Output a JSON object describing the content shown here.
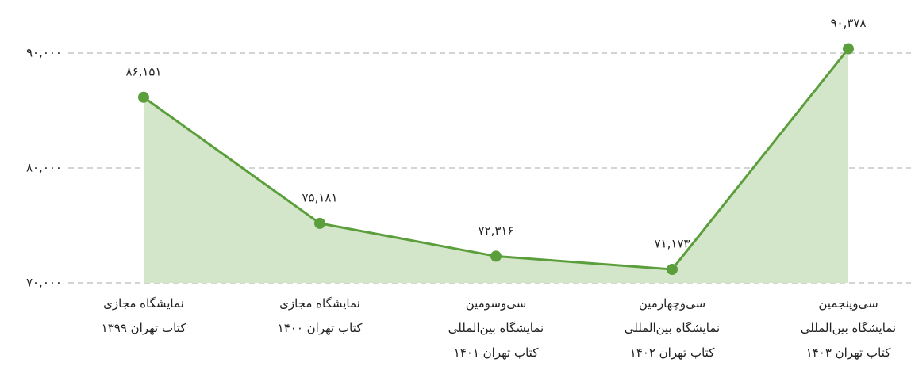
{
  "chart_data": {
    "type": "area",
    "categories": [
      [
        "نمایشگاه مجازی",
        "کتاب تهران ۱۳۹۹"
      ],
      [
        "نمایشگاه مجازی",
        "کتاب تهران ۱۴۰۰"
      ],
      [
        "سی‌وسومین",
        "نمایشگاه بین‌المللی",
        "کتاب تهران ۱۴۰۱"
      ],
      [
        "سی‌وچهارمین",
        "نمایشگاه بین‌المللی",
        "کتاب تهران ۱۴۰۲"
      ],
      [
        "سی‌وپنجمین",
        "نمایشگاه بین‌المللی",
        "کتاب تهران ۱۴۰۳"
      ]
    ],
    "values": [
      86151,
      75181,
      72316,
      71173,
      90378
    ],
    "value_labels": [
      "۸۶,۱۵۱",
      "۷۵,۱۸۱",
      "۷۲,۳۱۶",
      "۷۱,۱۷۳",
      "۹۰,۳۷۸"
    ],
    "color": "#5b9e3c",
    "fill_color": "#d4e6c9",
    "ylim": [
      70000,
      92000
    ],
    "yticks": [
      {
        "value": 70000,
        "label": "۷۰,۰۰۰"
      },
      {
        "value": 80000,
        "label": "۸۰,۰۰۰"
      },
      {
        "value": 90000,
        "label": "۹۰,۰۰۰"
      }
    ],
    "grid": true
  }
}
